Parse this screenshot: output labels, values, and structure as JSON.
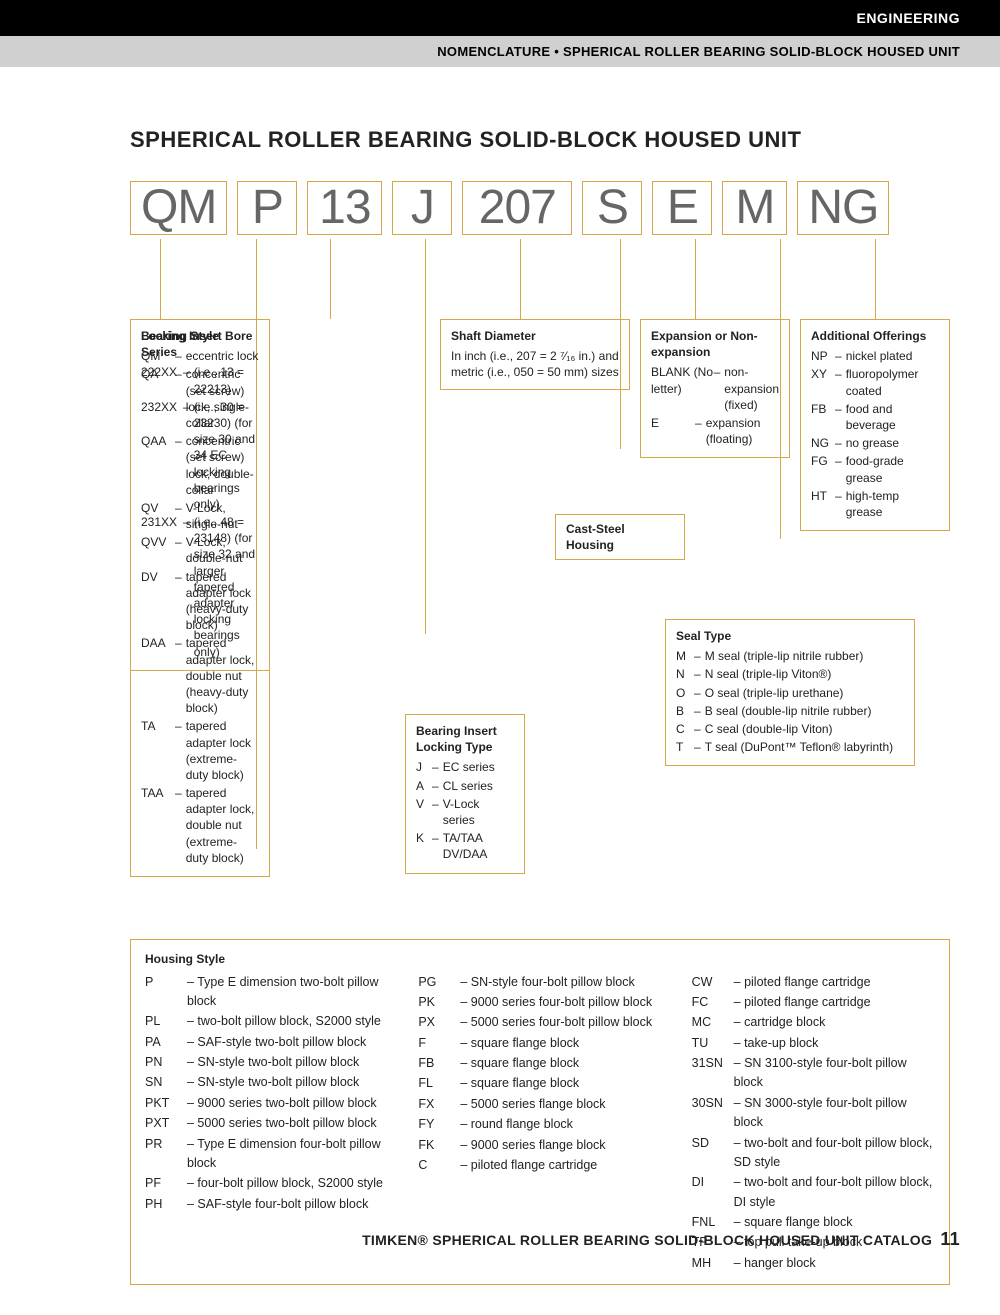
{
  "header": {
    "top_right": "ENGINEERING",
    "sub_right": "NOMENCLATURE • SPHERICAL ROLLER BEARING SOLID-BLOCK HOUSED UNIT"
  },
  "title": "SPHERICAL ROLLER BEARING SOLID-BLOCK HOUSED UNIT",
  "code_parts": [
    "QM",
    "P",
    "13",
    "J",
    "207",
    "S",
    "E",
    "M",
    "NG"
  ],
  "colors": {
    "box_border": "#d4a94a",
    "code_text": "#666666",
    "black": "#000000",
    "gray_bar": "#d0d0d0"
  },
  "sections": {
    "locking_style": {
      "title": "Locking Style",
      "items": [
        {
          "code": "QM",
          "desc": "eccentric lock"
        },
        {
          "code": "QA",
          "desc": "concentric (set screw) lock, single-collar"
        },
        {
          "code": "QAA",
          "desc": "concentric (set screw) lock, double-collar"
        },
        {
          "code": "QV",
          "desc": "V-Lock, single-nut"
        },
        {
          "code": "QVV",
          "desc": "V-Lock, double-nut"
        },
        {
          "code": "DV",
          "desc": "tapered adapter lock (heavy-duty block)"
        },
        {
          "code": "DAA",
          "desc": "tapered adapter lock, double nut (heavy-duty block)"
        },
        {
          "code": "TA",
          "desc": "tapered adapter lock (extreme-duty block)"
        },
        {
          "code": "TAA",
          "desc": "tapered adapter lock, double nut (extreme-duty block)"
        }
      ]
    },
    "bore_series": {
      "title": "Bearing Insert Bore Series",
      "items": [
        {
          "code": "222XX",
          "desc": "(i.e., 13 = 22213)"
        },
        {
          "code": "232XX",
          "desc": "(i.e., 30 = 23230) (for size 30 and 34 EC locking bearings only)"
        },
        {
          "code": "231XX",
          "desc": "(i.e., 48 = 23148) (for size 32 and larger tapered adapter locking bearings only)"
        }
      ]
    },
    "locking_type": {
      "title": "Bearing Insert Locking Type",
      "items": [
        {
          "code": "J",
          "desc": "EC series"
        },
        {
          "code": "A",
          "desc": "CL series"
        },
        {
          "code": "V",
          "desc": "V-Lock series"
        },
        {
          "code": "K",
          "desc": "TA/TAA DV/DAA"
        }
      ]
    },
    "shaft_diameter": {
      "title": "Shaft Diameter",
      "text": "In inch (i.e., 207 = 2 ⁷⁄₁₆ in.) and metric (i.e., 050 = 50 mm) sizes"
    },
    "cast_steel": {
      "title": "Cast-Steel Housing"
    },
    "expansion": {
      "title": "Expansion or Non-expansion",
      "items": [
        {
          "code": "BLANK (No letter)",
          "desc": "non-expansion (fixed)"
        },
        {
          "code": "E",
          "desc": "expansion (floating)"
        }
      ]
    },
    "seal_type": {
      "title": "Seal Type",
      "items": [
        {
          "code": "M",
          "desc": "M seal (triple-lip nitrile rubber)"
        },
        {
          "code": "N",
          "desc": "N seal (triple-lip Viton®)"
        },
        {
          "code": "O",
          "desc": "O seal (triple-lip urethane)"
        },
        {
          "code": "B",
          "desc": "B seal (double-lip nitrile rubber)"
        },
        {
          "code": "C",
          "desc": "C seal (double-lip Viton)"
        },
        {
          "code": "T",
          "desc": "T seal (DuPont™ Teflon® labyrinth)"
        }
      ]
    },
    "additional": {
      "title": "Additional Offerings",
      "items": [
        {
          "code": "NP",
          "desc": "nickel plated"
        },
        {
          "code": "XY",
          "desc": "fluoropolymer coated"
        },
        {
          "code": "FB",
          "desc": "food and beverage"
        },
        {
          "code": "NG",
          "desc": "no grease"
        },
        {
          "code": "FG",
          "desc": "food-grade grease"
        },
        {
          "code": "HT",
          "desc": "high-temp grease"
        }
      ]
    },
    "housing": {
      "title": "Housing Style",
      "cols": [
        [
          {
            "code": "P",
            "desc": "Type E dimension two-bolt pillow block"
          },
          {
            "code": "PL",
            "desc": "two-bolt pillow block, S2000 style"
          },
          {
            "code": "PA",
            "desc": "SAF-style two-bolt pillow block"
          },
          {
            "code": "PN",
            "desc": "SN-style two-bolt pillow block"
          },
          {
            "code": "SN",
            "desc": "SN-style two-bolt pillow block"
          },
          {
            "code": "PKT",
            "desc": "9000 series two-bolt pillow block"
          },
          {
            "code": "PXT",
            "desc": "5000 series two-bolt pillow block"
          },
          {
            "code": "PR",
            "desc": "Type E dimension four-bolt pillow block"
          },
          {
            "code": "PF",
            "desc": "four-bolt pillow block, S2000 style"
          },
          {
            "code": "PH",
            "desc": "SAF-style four-bolt pillow block"
          }
        ],
        [
          {
            "code": "PG",
            "desc": "SN-style four-bolt pillow block"
          },
          {
            "code": "PK",
            "desc": "9000 series four-bolt pillow block"
          },
          {
            "code": "PX",
            "desc": "5000 series four-bolt pillow block"
          },
          {
            "code": "F",
            "desc": "square flange block"
          },
          {
            "code": "FB",
            "desc": "square flange block"
          },
          {
            "code": "FL",
            "desc": "square flange block"
          },
          {
            "code": "FX",
            "desc": "5000 series flange block"
          },
          {
            "code": "FY",
            "desc": "round flange block"
          },
          {
            "code": "FK",
            "desc": "9000 series flange block"
          },
          {
            "code": "C",
            "desc": "piloted flange cartridge"
          }
        ],
        [
          {
            "code": "CW",
            "desc": "piloted flange cartridge"
          },
          {
            "code": "FC",
            "desc": "piloted flange cartridge"
          },
          {
            "code": "MC",
            "desc": "cartridge block"
          },
          {
            "code": "TU",
            "desc": "take-up block"
          },
          {
            "code": "31SN",
            "desc": "SN 3100-style four-bolt pillow block"
          },
          {
            "code": "30SN",
            "desc": "SN 3000-style four-bolt pillow block"
          },
          {
            "code": "SD",
            "desc": "two-bolt and four-bolt pillow block, SD style"
          },
          {
            "code": "DI",
            "desc": "two-bolt and four-bolt pillow block, DI style"
          },
          {
            "code": "FNL",
            "desc": "square flange block"
          },
          {
            "code": "TP",
            "desc": "top pull take-up block"
          },
          {
            "code": "MH",
            "desc": "hanger block"
          }
        ]
      ]
    }
  },
  "footer": {
    "text": "TIMKEN® SPHERICAL ROLLER BEARING SOLID-BLOCK HOUSED UNIT CATALOG",
    "page": "11"
  }
}
